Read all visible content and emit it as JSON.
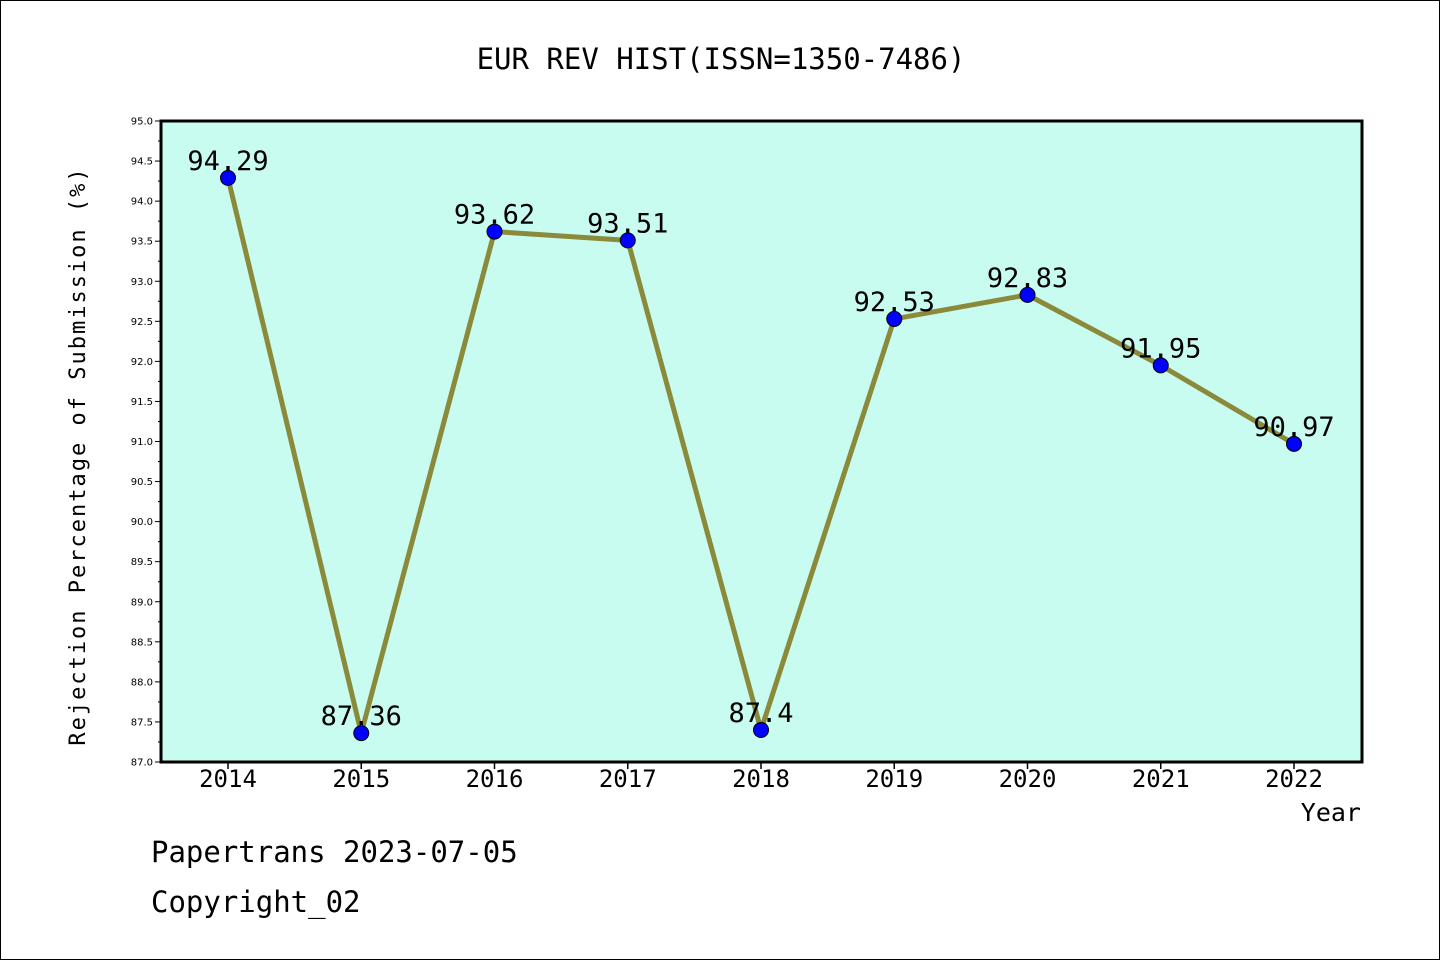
{
  "chart_data": {
    "type": "line",
    "title": "EUR REV HIST(ISSN=1350-7486)",
    "xlabel": "Year",
    "ylabel": "Rejection Percentage of Submission (%)",
    "categories": [
      "2014",
      "2015",
      "2016",
      "2017",
      "2018",
      "2019",
      "2020",
      "2021",
      "2022"
    ],
    "series": [
      {
        "values": [
          94.29,
          87.36,
          93.62,
          93.51,
          87.4,
          92.53,
          92.83,
          91.95,
          90.97
        ]
      }
    ],
    "data_labels": [
      "94.29",
      "87.36",
      "93.62",
      "93.51",
      "87.4",
      "92.53",
      "92.83",
      "91.95",
      "90.97"
    ],
    "ylim": [
      87.0,
      95.0
    ],
    "yticks": [
      "87.0",
      "87.5",
      "88.0",
      "88.5",
      "89.0",
      "89.5",
      "90.0",
      "90.5",
      "91.0",
      "91.5",
      "92.0",
      "92.5",
      "93.0",
      "93.5",
      "94.0",
      "94.5",
      "95.0"
    ],
    "grid": false,
    "legend": "none",
    "colors": {
      "plot_background": "#c8fcf0",
      "line": "#8b8a3a",
      "marker": "#0000ff"
    }
  },
  "footer": {
    "line1": "Papertrans 2023-07-05",
    "line2": "Copyright_02"
  }
}
